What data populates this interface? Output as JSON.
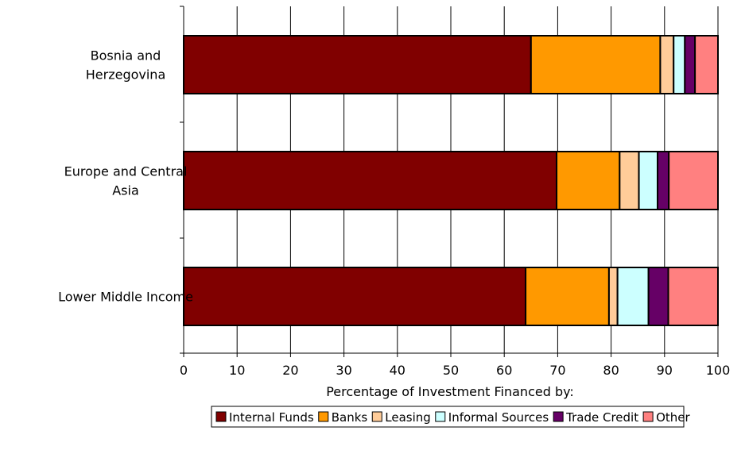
{
  "chart_data": {
    "type": "bar",
    "orientation": "horizontal",
    "stacked": true,
    "categories": [
      [
        "Bosnia and",
        "Herzegovina"
      ],
      [
        "Europe and Central",
        "Asia"
      ],
      [
        "Lower Middle Income"
      ]
    ],
    "series": [
      {
        "name": "Internal Funds",
        "color": "#800000",
        "values": [
          65,
          69.8,
          64
        ]
      },
      {
        "name": "Banks",
        "color": "#FF9900",
        "values": [
          24.2,
          11.8,
          15.6
        ]
      },
      {
        "name": "Leasing",
        "color": "#FFCC99",
        "values": [
          2.5,
          3.6,
          1.6
        ]
      },
      {
        "name": "Informal Sources",
        "color": "#CCFFFF",
        "values": [
          2.1,
          3.5,
          5.8
        ]
      },
      {
        "name": "Trade Credit",
        "color": "#660066",
        "values": [
          1.9,
          2.1,
          3.7
        ]
      },
      {
        "name": "Other",
        "color": "#FF8080",
        "values": [
          4.3,
          9.2,
          9.3
        ]
      }
    ],
    "xlabel": "Percentage of Investment Financed by:",
    "xlim": [
      0,
      100
    ],
    "xticks": [
      0,
      10,
      20,
      30,
      40,
      50,
      60,
      70,
      80,
      90,
      100
    ],
    "grid": "vertical",
    "legend": "bottom"
  }
}
